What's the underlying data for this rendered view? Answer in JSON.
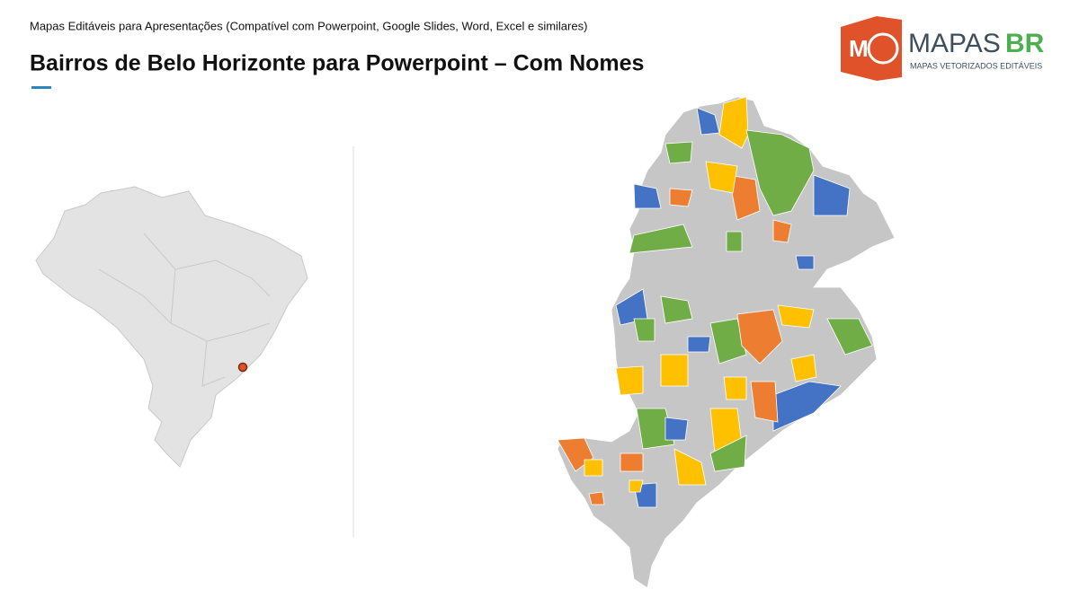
{
  "header": {
    "subtitle": "Mapas Editáveis para Apresentações (Compatível com Powerpoint, Google Slides, Word, Excel e similares)",
    "title": "Bairros de Belo Horizonte para Powerpoint – Com Nomes"
  },
  "logo": {
    "icon_letter": "M",
    "brand": "MAPAS",
    "brand_suffix": "BR",
    "tagline": "MAPAS VETORIZADOS EDITÁVEIS"
  }
}
